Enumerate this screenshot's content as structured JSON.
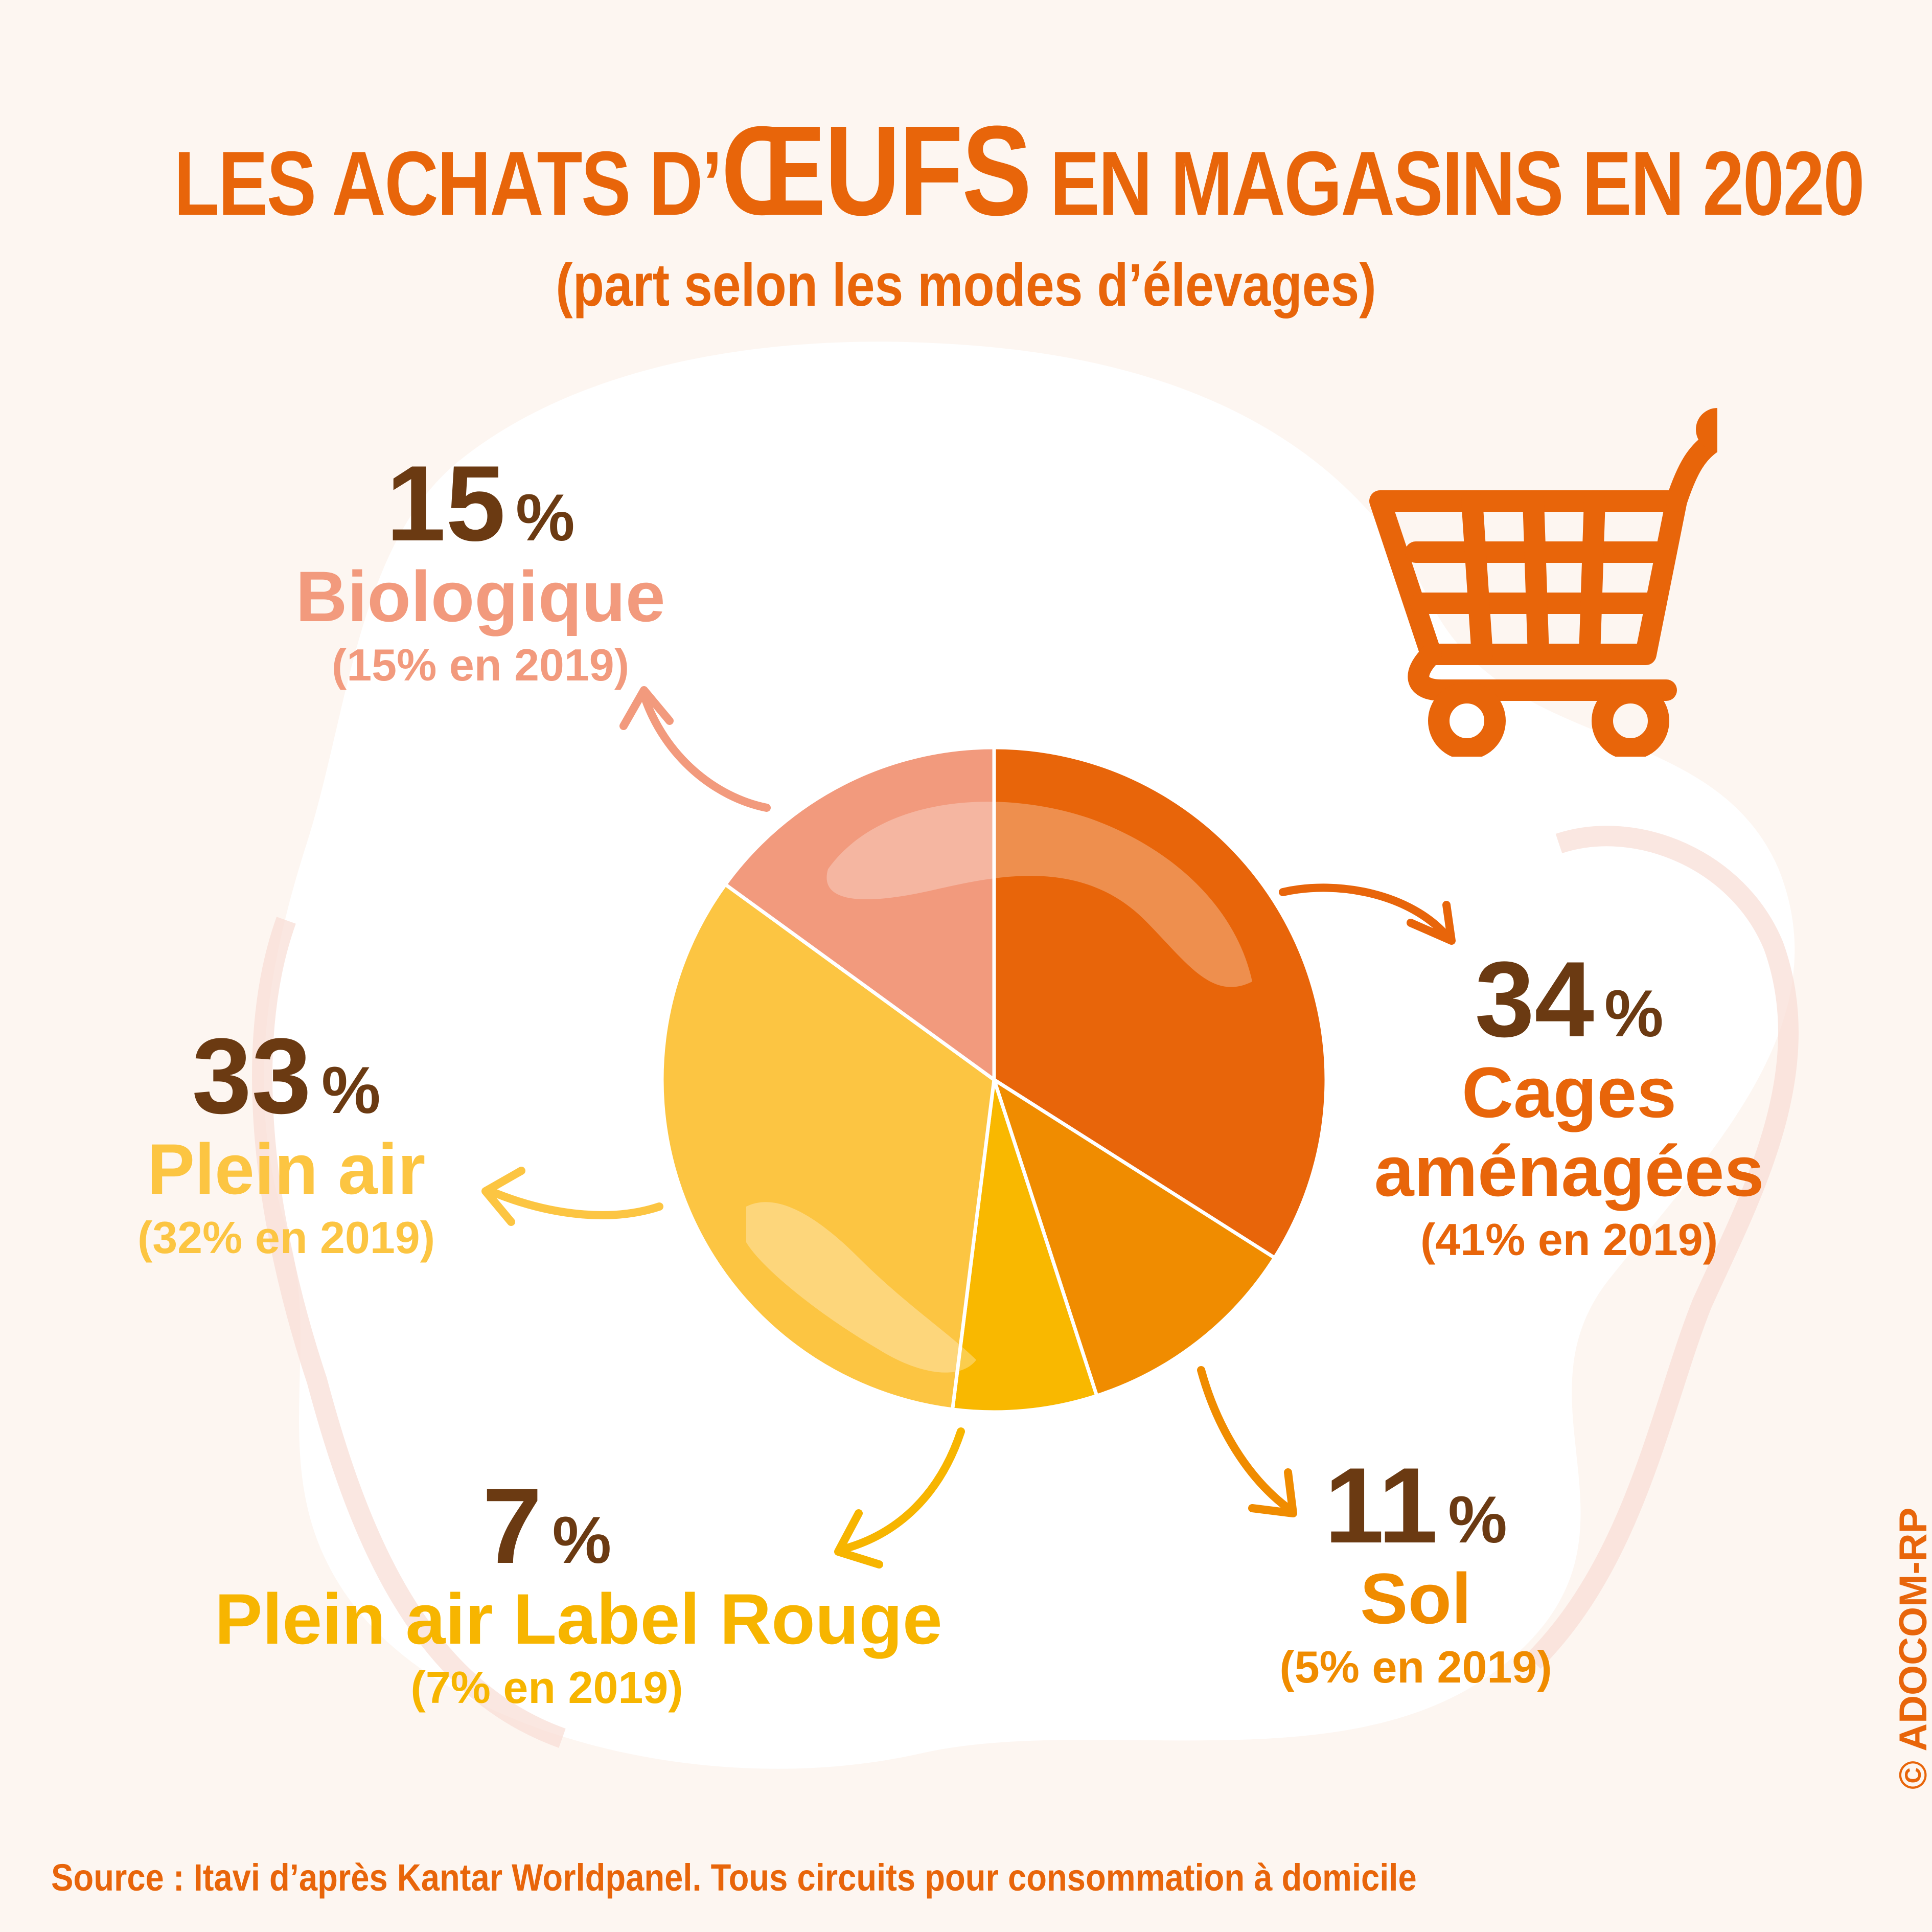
{
  "title": {
    "prefix": "LES ACHATS D’",
    "emphasis": "ŒUFS",
    "suffix": " EN MAGASINS EN 2020"
  },
  "subtitle": "(part selon les modes d’élevages)",
  "chart_data": {
    "type": "pie",
    "slices": [
      {
        "name": "Cages aménagées",
        "value": 34,
        "percent_label": "34",
        "previous": "(41% en 2019)",
        "color": "#e8650a",
        "label_color": "#e8650a"
      },
      {
        "name": "Sol",
        "value": 11,
        "percent_label": "11",
        "previous": "(5% en 2019)",
        "color": "#f08c00",
        "label_color": "#f08c00"
      },
      {
        "name": "Plein air Label Rouge",
        "value": 7,
        "percent_label": "7",
        "previous": "(7% en 2019)",
        "color": "#f9b800",
        "label_color": "#f7b500"
      },
      {
        "name": "Plein air",
        "value": 33,
        "percent_label": "33",
        "previous": "(32% en 2019)",
        "color": "#fcc542",
        "label_color": "#fcc542"
      },
      {
        "name": "Biologique",
        "value": 15,
        "percent_label": "15",
        "previous": "(15% en 2019)",
        "color": "#f29a7d",
        "label_color": "#f29a7d"
      }
    ],
    "percent_sign": "%"
  },
  "source": "Source : Itavi d’après Kantar Worldpanel. Tous circuits pour consommation à domicile",
  "copyright": "© ADOCOM-RP",
  "colors": {
    "accent": "#e8650a",
    "dark": "#6b3a12",
    "background": "#fdf6f1"
  },
  "icons": {
    "cart": "shopping-cart-icon"
  }
}
